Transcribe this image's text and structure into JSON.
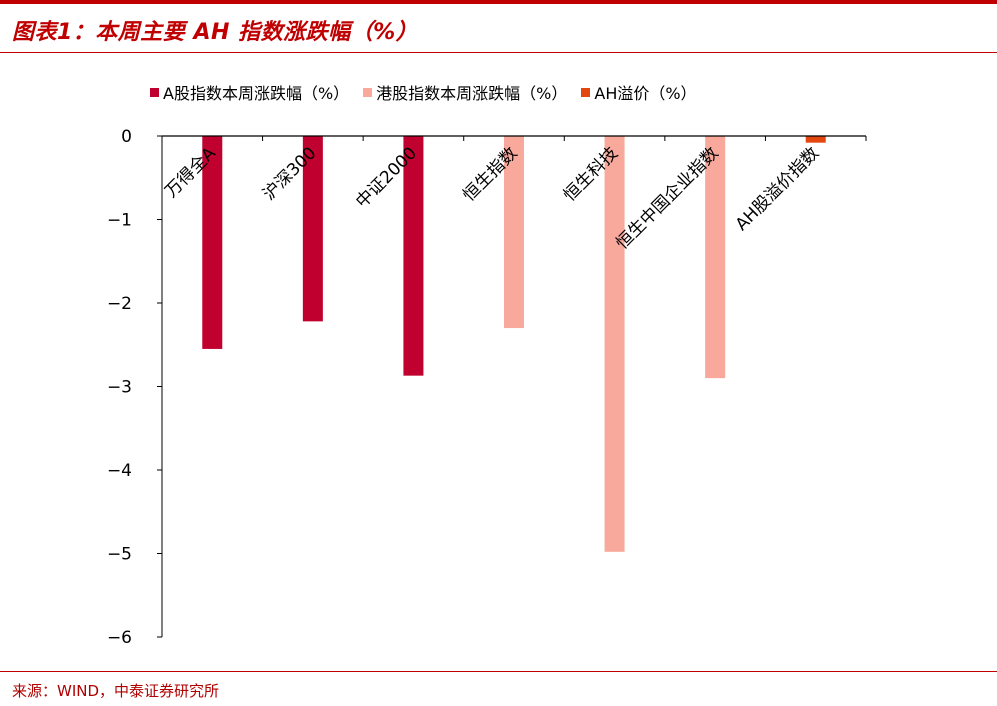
{
  "header": {
    "title": "图表1：本周主要 AH 指数涨跌幅（%）"
  },
  "footer": {
    "source": "来源：WIND，中泰证券研究所"
  },
  "colors": {
    "brand_red": "#c00000",
    "series_a": "#c0002f",
    "series_hk": "#f8a99c",
    "series_ah": "#e2470f"
  },
  "chart_data": {
    "type": "bar",
    "categories": [
      "万得全A",
      "沪深300",
      "中证2000",
      "恒生指数",
      "恒生科技",
      "恒生中国企业指数",
      "AH股溢价指数"
    ],
    "series": [
      {
        "name": "A股指数本周涨跌幅（%）",
        "values": [
          -2.55,
          -2.22,
          -2.87,
          null,
          null,
          null,
          null
        ]
      },
      {
        "name": "港股指数本周涨跌幅（%）",
        "values": [
          null,
          null,
          null,
          -2.3,
          -4.98,
          -2.9,
          null
        ]
      },
      {
        "name": "AH溢价（%）",
        "values": [
          null,
          null,
          null,
          null,
          null,
          null,
          -0.08
        ]
      }
    ],
    "yticks": [
      "0",
      "-1",
      "-2",
      "-3",
      "-4",
      "-5",
      "-6"
    ],
    "ylim": [
      -6,
      0
    ],
    "legend_position": "top",
    "grid": false
  }
}
